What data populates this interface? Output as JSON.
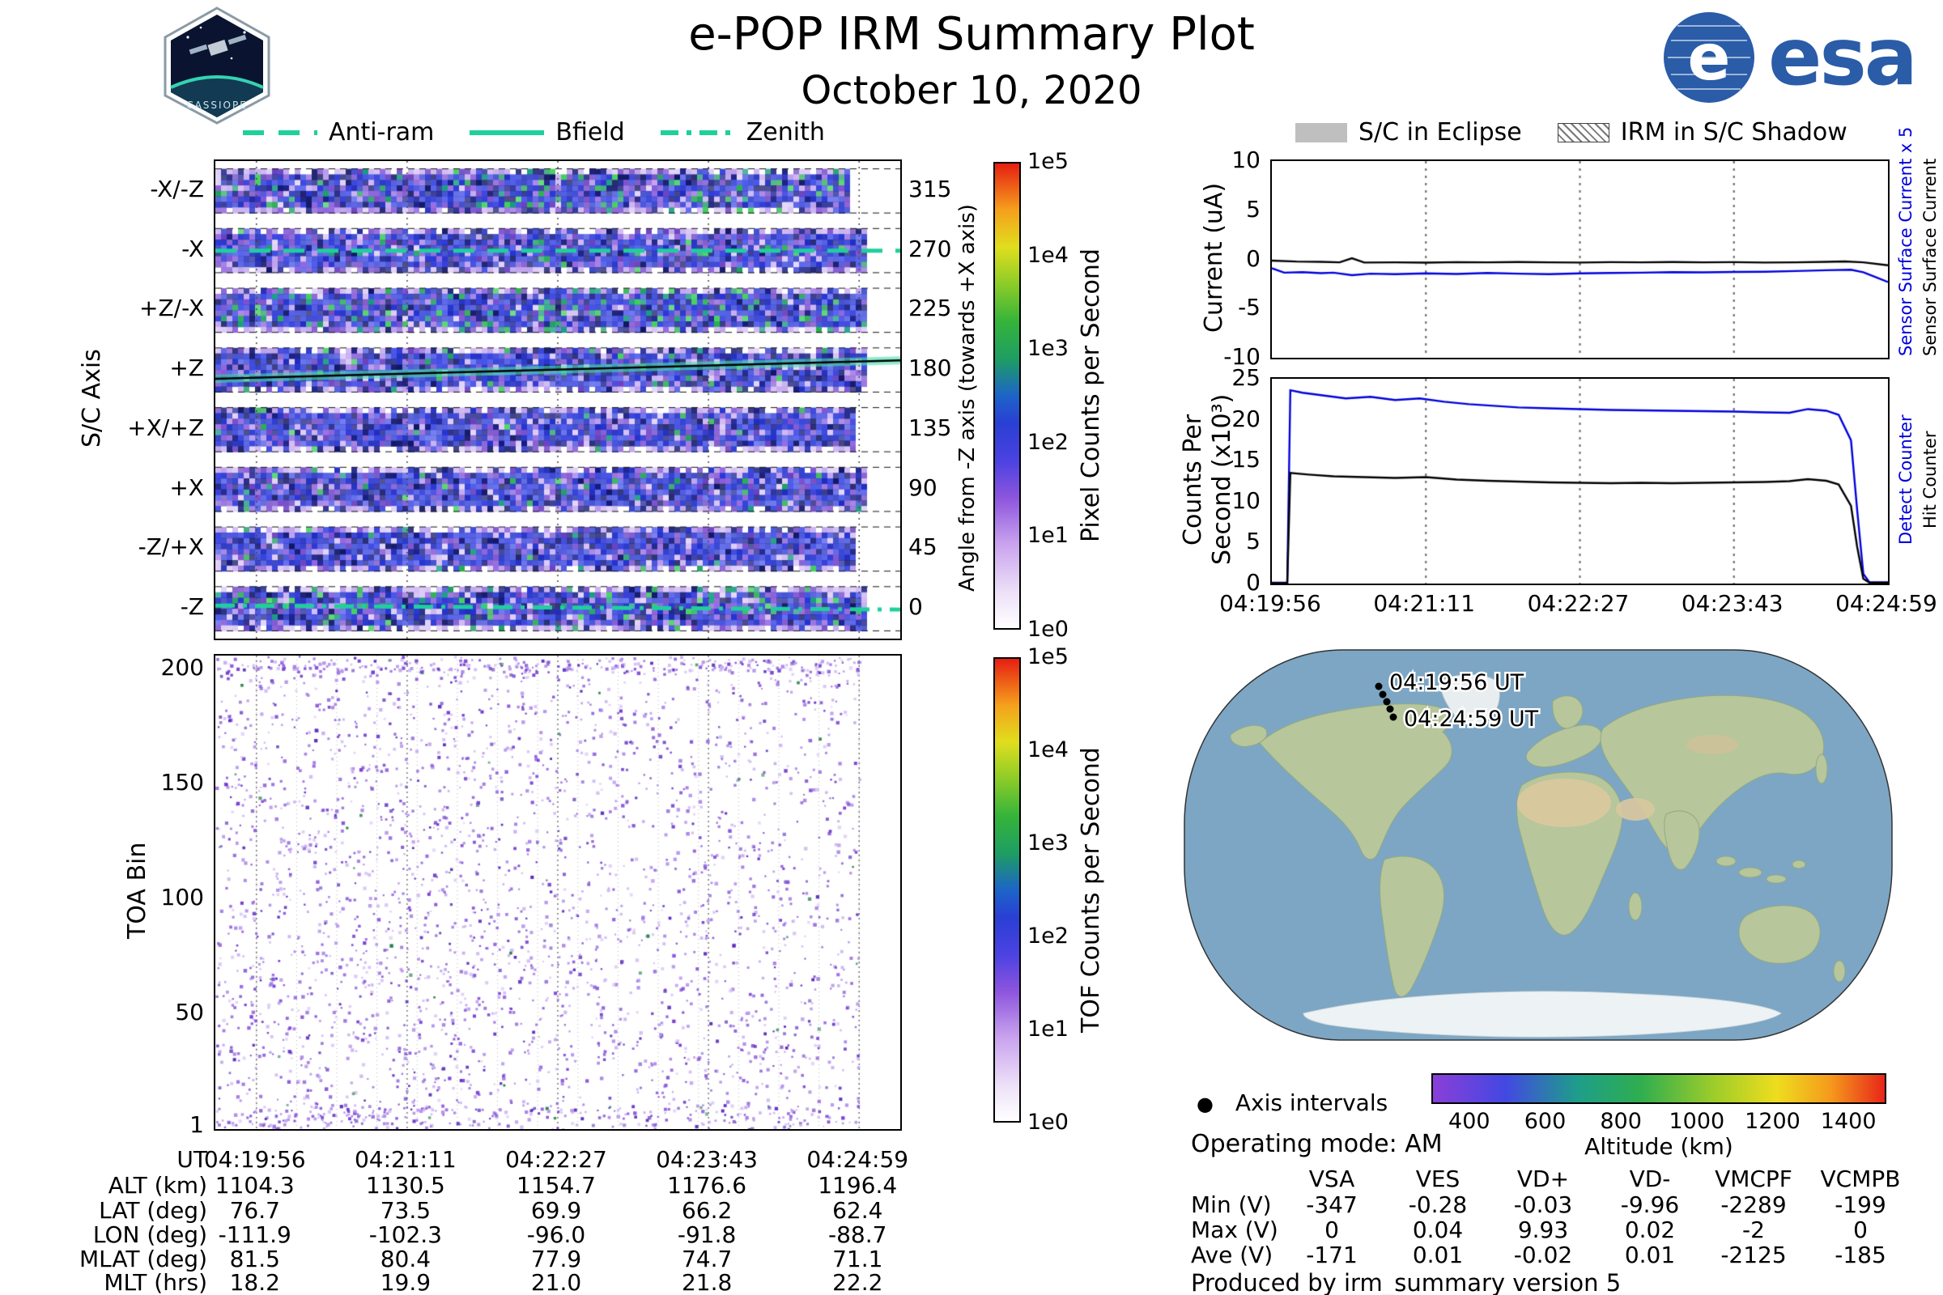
{
  "header": {
    "title": "e-POP IRM Summary Plot",
    "date": "October 10, 2020",
    "esa_text": "esa",
    "cassiope_text": "CASSIOPE"
  },
  "colors": {
    "accent_teal": "#1fcf9c",
    "series_blue": "#0000dd",
    "series_black": "#000000",
    "esa_blue": "#2a5ca8",
    "map_ocean": "#7ca6c4"
  },
  "orientation_legend": {
    "items": [
      {
        "label": "Anti-ram",
        "style": "dashed"
      },
      {
        "label": "Bfield",
        "style": "solid"
      },
      {
        "label": "Zenith",
        "style": "dashdot"
      }
    ]
  },
  "eclipse_legend": {
    "items": [
      {
        "label": "S/C in Eclipse",
        "swatch": "solid-gray"
      },
      {
        "label": "IRM in S/C Shadow",
        "swatch": "hatched"
      }
    ]
  },
  "time_axis": {
    "ticks": [
      "04:19:56",
      "04:21:11",
      "04:22:27",
      "04:23:43",
      "04:24:59"
    ]
  },
  "chart_data": [
    {
      "id": "sc_axis_spectrogram",
      "type": "heatmap",
      "ylabel": "S/C Axis",
      "categories_top_to_bottom": [
        "-X/-Z",
        "-X",
        "+Z/-X",
        "+Z",
        "+X/+Z",
        "+X",
        "-Z/+X",
        "-Z"
      ],
      "right_axis_label": "Angle from -Z axis (towards +X axis)",
      "right_ticks_top_to_bottom": [
        "315",
        "270",
        "225",
        "180",
        "135",
        "90",
        "45",
        "0"
      ],
      "x_ticks": [
        "04:19:56",
        "04:21:11",
        "04:22:27",
        "04:23:43",
        "04:24:59"
      ],
      "colorbar": {
        "label": "Pixel Counts per Second",
        "ticks_top_to_bottom": [
          "1e5",
          "1e4",
          "1e3",
          "1e2",
          "1e1",
          "1e0"
        ]
      },
      "overlays": [
        {
          "name": "Anti-ram",
          "style": "dashed",
          "row": "-X",
          "angle_deg": 270
        },
        {
          "name": "Bfield",
          "style": "solid",
          "row": "+Z",
          "angle_start": 177,
          "angle_end": 187
        },
        {
          "name": "Zenith",
          "style": "dashdot",
          "row": "-Z",
          "angle_deg": 5
        }
      ],
      "data_end_fraction": 0.94
    },
    {
      "id": "toa_spectrogram",
      "type": "heatmap",
      "ylabel": "TOA Bin",
      "y_ticks_top_to_bottom": [
        "200",
        "150",
        "100",
        "50",
        "1"
      ],
      "ylim": [
        1,
        205
      ],
      "x_ticks": [
        "04:19:56",
        "04:21:11",
        "04:22:27",
        "04:23:43",
        "04:24:59"
      ],
      "colorbar": {
        "label": "TOF Counts per Second",
        "ticks_top_to_bottom": [
          "1e5",
          "1e4",
          "1e3",
          "1e2",
          "1e1",
          "1e0"
        ]
      }
    },
    {
      "id": "sensor_current",
      "type": "line",
      "ylabel": "Current (uA)",
      "ylim": [
        -10,
        10
      ],
      "y_ticks_top_to_bottom": [
        "10",
        "5",
        "0",
        "-5",
        "-10"
      ],
      "right_labels": [
        {
          "text": "Sensor Surface Current x 5",
          "color": "#0000dd"
        },
        {
          "text": "Sensor Surface Current",
          "color": "#000000"
        }
      ],
      "series": [
        {
          "name": "Sensor Surface Current",
          "color": "#000000",
          "points": [
            [
              0,
              -0.12
            ],
            [
              0.04,
              -0.22
            ],
            [
              0.08,
              -0.25
            ],
            [
              0.11,
              -0.3
            ],
            [
              0.13,
              0.12
            ],
            [
              0.15,
              -0.32
            ],
            [
              0.2,
              -0.3
            ],
            [
              0.25,
              -0.33
            ],
            [
              0.3,
              -0.28
            ],
            [
              0.35,
              -0.3
            ],
            [
              0.4,
              -0.27
            ],
            [
              0.45,
              -0.3
            ],
            [
              0.5,
              -0.32
            ],
            [
              0.55,
              -0.28
            ],
            [
              0.6,
              -0.3
            ],
            [
              0.65,
              -0.27
            ],
            [
              0.7,
              -0.3
            ],
            [
              0.75,
              -0.28
            ],
            [
              0.8,
              -0.32
            ],
            [
              0.85,
              -0.3
            ],
            [
              0.9,
              -0.25
            ],
            [
              0.93,
              -0.2
            ],
            [
              0.96,
              -0.3
            ],
            [
              1,
              -0.6
            ]
          ]
        },
        {
          "name": "Sensor Surface Current x 5",
          "color": "#0000dd",
          "points": [
            [
              0,
              -0.9
            ],
            [
              0.02,
              -1.35
            ],
            [
              0.05,
              -1.3
            ],
            [
              0.08,
              -1.4
            ],
            [
              0.1,
              -1.35
            ],
            [
              0.13,
              -1.6
            ],
            [
              0.16,
              -1.45
            ],
            [
              0.2,
              -1.5
            ],
            [
              0.25,
              -1.42
            ],
            [
              0.3,
              -1.48
            ],
            [
              0.35,
              -1.38
            ],
            [
              0.4,
              -1.45
            ],
            [
              0.45,
              -1.5
            ],
            [
              0.5,
              -1.42
            ],
            [
              0.55,
              -1.38
            ],
            [
              0.6,
              -1.35
            ],
            [
              0.65,
              -1.3
            ],
            [
              0.7,
              -1.32
            ],
            [
              0.75,
              -1.28
            ],
            [
              0.8,
              -1.25
            ],
            [
              0.85,
              -1.18
            ],
            [
              0.9,
              -1.1
            ],
            [
              0.94,
              -1.05
            ],
            [
              0.96,
              -1.3
            ],
            [
              0.98,
              -1.8
            ],
            [
              1,
              -2.3
            ]
          ]
        }
      ]
    },
    {
      "id": "counters",
      "type": "line",
      "ylabel_lines": [
        "Counts Per",
        "Second (x10³)"
      ],
      "ylim": [
        0,
        25
      ],
      "y_ticks_top_to_bottom": [
        "25",
        "20",
        "15",
        "10",
        "5",
        "0"
      ],
      "x_ticks": [
        "04:19:56",
        "04:21:11",
        "04:22:27",
        "04:23:43",
        "04:24:59"
      ],
      "right_labels": [
        {
          "text": "Detect Counter",
          "color": "#0000dd"
        },
        {
          "text": "Hit Counter",
          "color": "#000000"
        }
      ],
      "series": [
        {
          "name": "Detect Counter",
          "color": "#0000dd",
          "points": [
            [
              0,
              0.1
            ],
            [
              0.025,
              0.1
            ],
            [
              0.03,
              23.6
            ],
            [
              0.05,
              23.3
            ],
            [
              0.08,
              23.0
            ],
            [
              0.12,
              22.6
            ],
            [
              0.16,
              22.8
            ],
            [
              0.2,
              22.4
            ],
            [
              0.24,
              22.6
            ],
            [
              0.28,
              22.2
            ],
            [
              0.32,
              21.9
            ],
            [
              0.36,
              21.7
            ],
            [
              0.4,
              21.5
            ],
            [
              0.45,
              21.4
            ],
            [
              0.5,
              21.3
            ],
            [
              0.55,
              21.2
            ],
            [
              0.6,
              21.15
            ],
            [
              0.65,
              21.1
            ],
            [
              0.7,
              21.05
            ],
            [
              0.75,
              21.0
            ],
            [
              0.8,
              20.9
            ],
            [
              0.84,
              20.85
            ],
            [
              0.87,
              21.3
            ],
            [
              0.9,
              21.1
            ],
            [
              0.92,
              20.6
            ],
            [
              0.94,
              17.5
            ],
            [
              0.95,
              9
            ],
            [
              0.96,
              1.2
            ],
            [
              0.97,
              0.15
            ],
            [
              1,
              0.15
            ]
          ]
        },
        {
          "name": "Hit Counter",
          "color": "#000000",
          "points": [
            [
              0,
              0.05
            ],
            [
              0.025,
              0.05
            ],
            [
              0.03,
              13.5
            ],
            [
              0.06,
              13.3
            ],
            [
              0.1,
              13.1
            ],
            [
              0.15,
              13.0
            ],
            [
              0.2,
              12.9
            ],
            [
              0.25,
              13.0
            ],
            [
              0.3,
              12.7
            ],
            [
              0.35,
              12.55
            ],
            [
              0.4,
              12.45
            ],
            [
              0.45,
              12.35
            ],
            [
              0.5,
              12.3
            ],
            [
              0.55,
              12.25
            ],
            [
              0.6,
              12.3
            ],
            [
              0.65,
              12.25
            ],
            [
              0.7,
              12.3
            ],
            [
              0.75,
              12.35
            ],
            [
              0.8,
              12.4
            ],
            [
              0.84,
              12.5
            ],
            [
              0.87,
              12.75
            ],
            [
              0.9,
              12.55
            ],
            [
              0.92,
              12.1
            ],
            [
              0.94,
              9.5
            ],
            [
              0.95,
              4.5
            ],
            [
              0.96,
              0.6
            ],
            [
              0.97,
              0.1
            ],
            [
              1,
              0.1
            ]
          ]
        }
      ]
    },
    {
      "id": "ground_track_map",
      "type": "map",
      "points": [
        {
          "label": "04:19:56 UT"
        },
        {
          "label": "04:24:59 UT"
        }
      ],
      "legend": "Axis intervals",
      "colorbar": {
        "label": "Altitude (km)",
        "ticks": [
          "400",
          "600",
          "800",
          "1000",
          "1200",
          "1400"
        ],
        "range": [
          300,
          1500
        ]
      }
    }
  ],
  "ephemeris_table": {
    "rows": [
      {
        "label": "UT",
        "values": [
          "04:19:56",
          "04:21:11",
          "04:22:27",
          "04:23:43",
          "04:24:59"
        ]
      },
      {
        "label": "ALT (km)",
        "values": [
          "1104.3",
          "1130.5",
          "1154.7",
          "1176.6",
          "1196.4"
        ]
      },
      {
        "label": "LAT (deg)",
        "values": [
          "76.7",
          "73.5",
          "69.9",
          "66.2",
          "62.4"
        ]
      },
      {
        "label": "LON (deg)",
        "values": [
          "-111.9",
          "-102.3",
          "-96.0",
          "-91.8",
          "-88.7"
        ]
      },
      {
        "label": "MLAT (deg)",
        "values": [
          "81.5",
          "80.4",
          "77.9",
          "74.7",
          "71.1"
        ]
      },
      {
        "label": "MLT (hrs)",
        "values": [
          "18.2",
          "19.9",
          "21.0",
          "21.8",
          "22.2"
        ]
      }
    ]
  },
  "voltage_table": {
    "columns": [
      "VSA",
      "VES",
      "VD+",
      "VD-",
      "VMCPF",
      "VCMPB"
    ],
    "rows": [
      {
        "label": "Min (V)",
        "values": [
          "-347",
          "-0.28",
          "-0.03",
          "-9.96",
          "-2289",
          "-199"
        ]
      },
      {
        "label": "Max (V)",
        "values": [
          "0",
          "0.04",
          "9.93",
          "0.02",
          "-2",
          "0"
        ]
      },
      {
        "label": "Ave (V)",
        "values": [
          "-171",
          "0.01",
          "-0.02",
          "0.01",
          "-2125",
          "-185"
        ]
      }
    ]
  },
  "status": {
    "operating_mode": "Operating mode: AM",
    "produced_by": "Produced by irm_summary version 5",
    "axis_intervals_label": "Axis intervals"
  }
}
